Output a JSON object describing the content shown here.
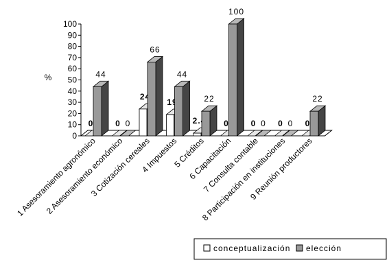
{
  "chart_data": {
    "type": "bar3d",
    "y_label": "%",
    "categories": [
      "1 Asesoramiento agronómico",
      "2 Asesoramiento económico",
      "3 Cotización cereales",
      "4 Impuestos",
      "5 Créditos",
      "6 Capacitación",
      "7 Consulta contable",
      "8 Participación en instituciones",
      "9 Reunión productores"
    ],
    "series": [
      {
        "name": "conceptualización",
        "color": "#ffffff",
        "values": [
          0,
          0,
          24,
          19,
          2.4,
          0,
          0,
          0,
          0
        ]
      },
      {
        "name": "elección",
        "color": "#999999",
        "values": [
          44,
          0,
          66,
          44,
          22,
          100,
          0,
          0,
          22
        ]
      }
    ],
    "ylim": [
      0,
      100
    ],
    "yticks": [
      0,
      10,
      20,
      30,
      40,
      50,
      60,
      70,
      80,
      90,
      100
    ],
    "grid": false,
    "legend": "bottom-right"
  }
}
